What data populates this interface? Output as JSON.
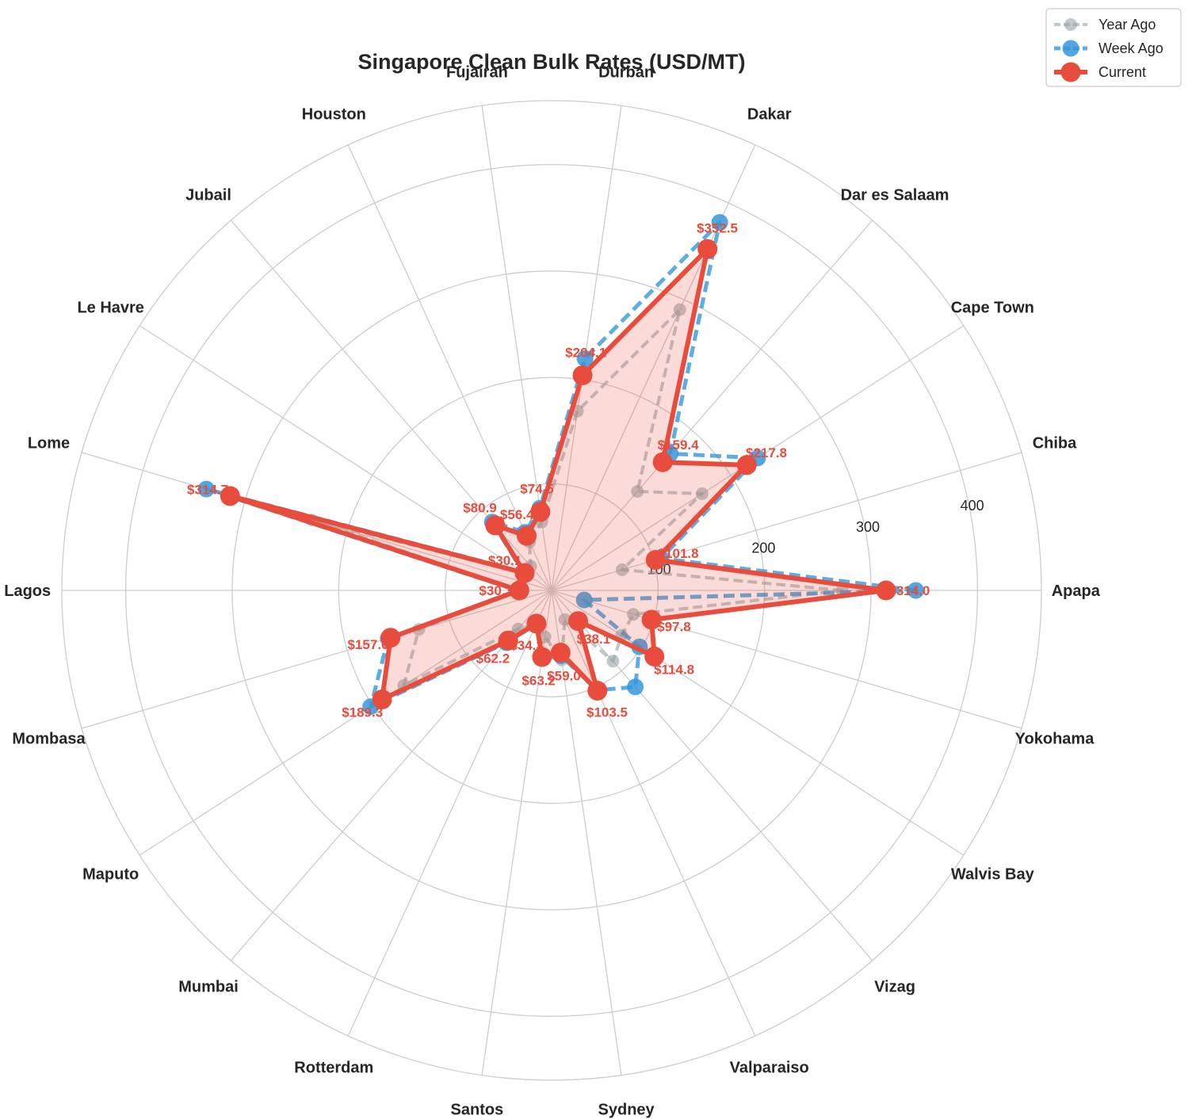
{
  "chart_data": {
    "type": "radar",
    "title": "Singapore Clean Bulk Rates (USD/MT)",
    "categories": [
      "Apapa",
      "Chiba",
      "Cape Town",
      "Dar es Salaam",
      "Dakar",
      "Durban",
      "Fujairah",
      "Houston",
      "Jubail",
      "Le Havre",
      "Lome",
      "Lagos",
      "Mombasa",
      "Maputo",
      "Mumbai",
      "Rotterdam",
      "Santos",
      "Sydney",
      "Valparaiso",
      "Vizag",
      "Walvis Bay",
      "Yokohama"
    ],
    "radial_ticks": [
      100,
      200,
      300,
      400
    ],
    "rlim": [
      0,
      460
    ],
    "grid": true,
    "legend_position": "top-right",
    "series": [
      {
        "name": "Year Ago",
        "color": "#95a5a6",
        "style": "dashed",
        "values": [
          273,
          69,
          168,
          123,
          290,
          170,
          65,
          50,
          30,
          30,
          235,
          30,
          130,
          165,
          48,
          35,
          44,
          66,
          30,
          88,
          78,
          80
        ]
      },
      {
        "name": "Week Ago",
        "color": "#3498db",
        "style": "dashed",
        "values": [
          342,
          107,
          230,
          170,
          380,
          220,
          78,
          60,
          85,
          32,
          338,
          32,
          160,
          202,
          65,
          35,
          63,
          62,
          103,
          120,
          98,
          32
        ]
      },
      {
        "name": "Current",
        "color": "#e74c3c",
        "style": "solid",
        "values": [
          314.0,
          101.8,
          217.8,
          159.4,
          352.5,
          204.1,
          74.5,
          56.4,
          80.9,
          30.1,
          314.7,
          30.3,
          157.6,
          189.3,
          62.2,
          34.3,
          63.2,
          59.0,
          103.5,
          38.1,
          114.8,
          97.8
        ]
      }
    ],
    "data_labels": [
      {
        "series": "Current",
        "category": "Apapa",
        "text": "$314.0"
      },
      {
        "series": "Current",
        "category": "Chiba",
        "text": "$101.8"
      },
      {
        "series": "Current",
        "category": "Cape Town",
        "text": "$217.8"
      },
      {
        "series": "Current",
        "category": "Dar es Salaam",
        "text": "$159.4"
      },
      {
        "series": "Current",
        "category": "Dakar",
        "text": "$352.5"
      },
      {
        "series": "Current",
        "category": "Durban",
        "text": "$204.1"
      },
      {
        "series": "Current",
        "category": "Fujairah",
        "text": "$74.5"
      },
      {
        "series": "Current",
        "category": "Houston",
        "text": "$56.4"
      },
      {
        "series": "Current",
        "category": "Jubail",
        "text": "$80.9"
      },
      {
        "series": "Current",
        "category": "Le Havre",
        "text": "$30.1"
      },
      {
        "series": "Current",
        "category": "Lome",
        "text": "$314.7"
      },
      {
        "series": "Current",
        "category": "Lagos",
        "text": "$30.3"
      },
      {
        "series": "Current",
        "category": "Mombasa",
        "text": "$157.6"
      },
      {
        "series": "Current",
        "category": "Maputo",
        "text": "$189.3"
      },
      {
        "series": "Current",
        "category": "Mumbai",
        "text": "$62.2"
      },
      {
        "series": "Current",
        "category": "Rotterdam",
        "text": "$34.3"
      },
      {
        "series": "Current",
        "category": "Santos",
        "text": "$63.2"
      },
      {
        "series": "Current",
        "category": "Sydney",
        "text": "$59.0"
      },
      {
        "series": "Current",
        "category": "Valparaiso",
        "text": "$103.5"
      },
      {
        "series": "Current",
        "category": "Vizag",
        "text": "$38.1"
      },
      {
        "series": "Current",
        "category": "Walvis Bay",
        "text": "$114.8"
      },
      {
        "series": "Current",
        "category": "Yokohama",
        "text": "$97.8"
      }
    ]
  }
}
